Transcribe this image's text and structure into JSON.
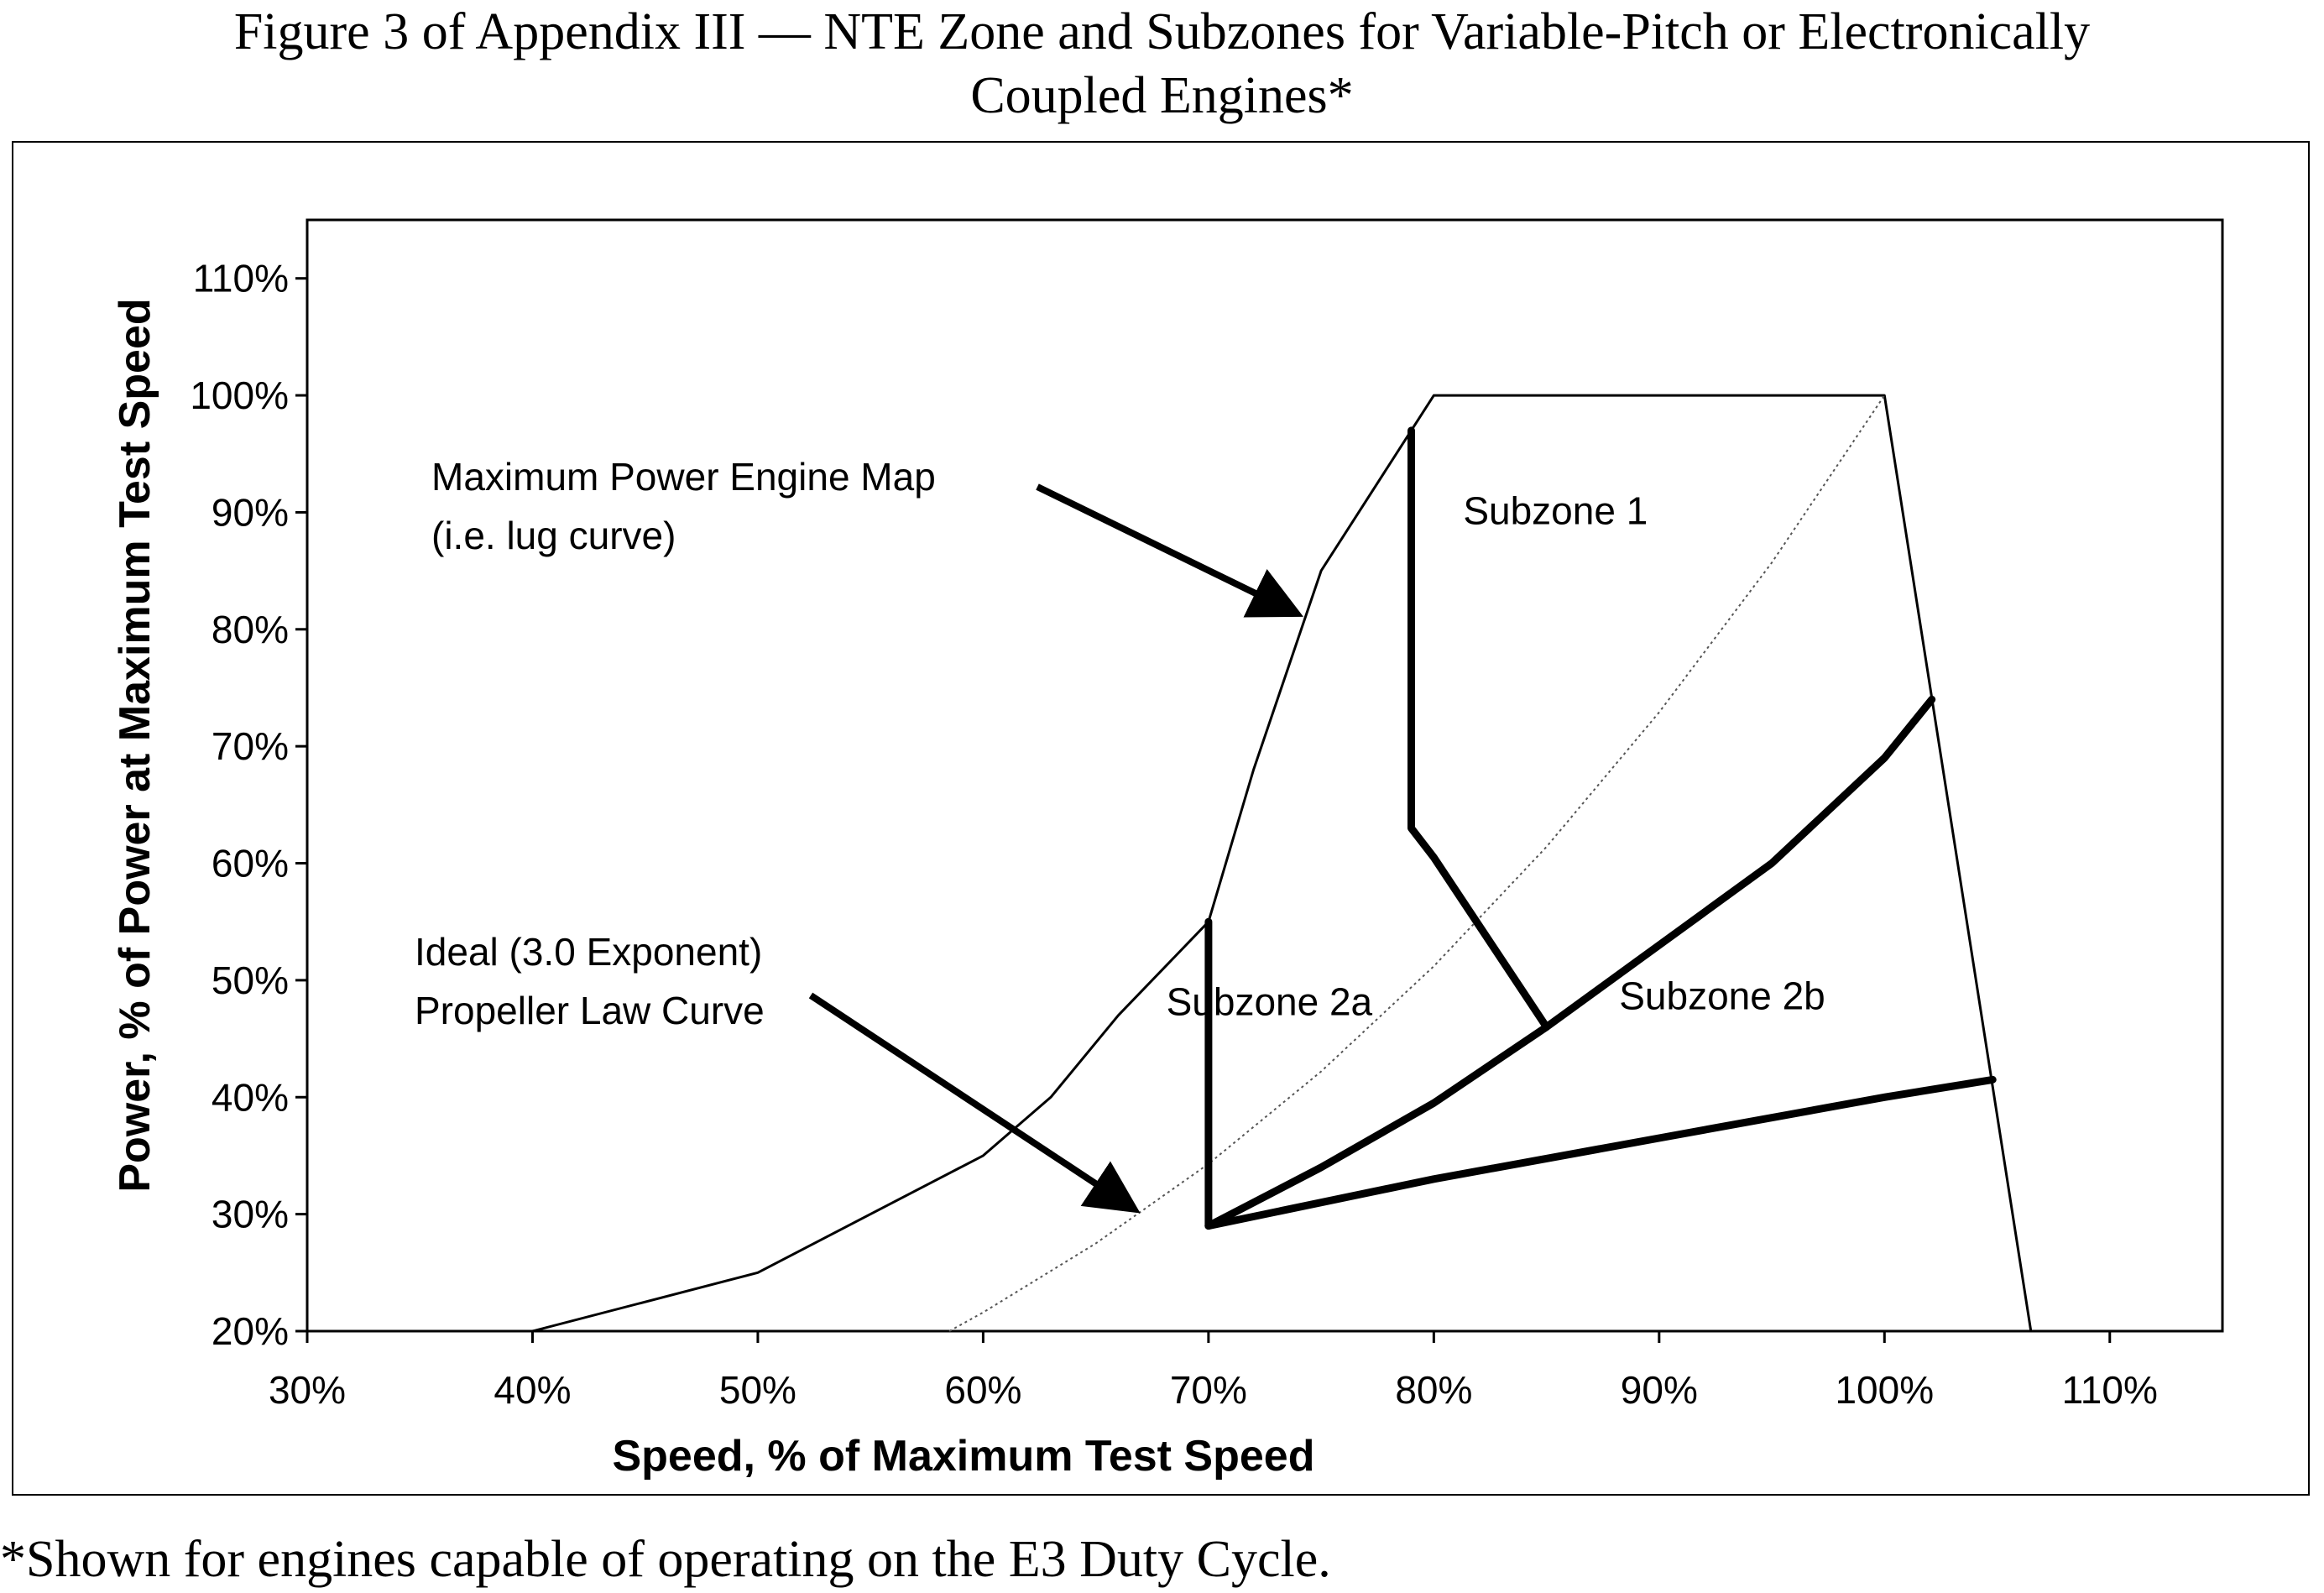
{
  "figure": {
    "title_line1": "Figure 3 of Appendix III — NTE Zone and Subzones for Variable-Pitch or Electronically",
    "title_line2": "Coupled Engines*",
    "footnote": "*Shown for engines capable of operating on the E3 Duty Cycle."
  },
  "chart_data": {
    "type": "line",
    "title": "Figure 3 of Appendix III — NTE Zone and Subzones for Variable-Pitch or Electronically Coupled Engines*",
    "xlabel": "Speed, % of Maximum Test Speed",
    "ylabel": "Power, % of Power at Maximum Test Speed",
    "xlim": [
      30,
      115
    ],
    "ylim": [
      20,
      115
    ],
    "xticks": [
      30,
      40,
      50,
      60,
      70,
      80,
      90,
      100,
      110
    ],
    "xtick_labels": [
      "30%",
      "40%",
      "50%",
      "60%",
      "70%",
      "80%",
      "90%",
      "100%",
      "110%"
    ],
    "yticks": [
      20,
      30,
      40,
      50,
      60,
      70,
      80,
      90,
      100,
      110
    ],
    "ytick_labels": [
      "20%",
      "30%",
      "40%",
      "50%",
      "60%",
      "70%",
      "80%",
      "90%",
      "100%",
      "110%"
    ],
    "grid": false,
    "series": [
      {
        "name": "Maximum Power Engine Map (i.e. lug curve)",
        "style": "thin",
        "x": [
          30,
          40,
          50,
          60,
          63,
          66,
          70,
          72,
          75,
          79,
          80,
          100,
          106.5
        ],
        "y": [
          20,
          20,
          25,
          35,
          40,
          47,
          55,
          68,
          85,
          97,
          100,
          100,
          20
        ]
      },
      {
        "name": "Ideal (3.0 Exponent) Propeller Law Curve",
        "style": "dotted",
        "x": [
          58.5,
          60,
          65,
          70,
          75,
          80,
          85,
          90,
          95,
          100
        ],
        "y": [
          20,
          21.6,
          27.5,
          34.3,
          42.2,
          51.2,
          61.4,
          72.9,
          85.7,
          100
        ]
      },
      {
        "name": "Subzone boundary (70% speed)",
        "style": "bold",
        "x": [
          70,
          70
        ],
        "y": [
          55,
          29
        ]
      },
      {
        "name": "Subzone boundary (lower)",
        "style": "bold",
        "x": [
          70,
          80,
          90,
          100,
          104.8
        ],
        "y": [
          29,
          33,
          36.5,
          40,
          41.5
        ]
      },
      {
        "name": "Subzone boundary (middle)",
        "style": "bold",
        "x": [
          70,
          75,
          80,
          85,
          90,
          95,
          100,
          102.1
        ],
        "y": [
          29,
          34,
          39.5,
          46,
          53,
          60,
          69,
          74
        ]
      },
      {
        "name": "Subzone 1 boundary",
        "style": "bold",
        "x": [
          79,
          79,
          80,
          85
        ],
        "y": [
          97,
          63,
          60.5,
          46
        ]
      }
    ],
    "annotations": [
      {
        "text_line1": "Maximum Power Engine Map",
        "text_line2": "(i.e. lug curve)",
        "arrow_to_x": 74.2,
        "arrow_to_y": 81
      },
      {
        "text_line1": "Ideal (3.0 Exponent)",
        "text_line2": "Propeller Law Curve",
        "arrow_to_x": 67,
        "arrow_to_y": 30
      },
      {
        "text": "Subzone 1",
        "x": 85.4,
        "y": 89
      },
      {
        "text": "Subzone 2a",
        "x": 72.7,
        "y": 47
      },
      {
        "text": "Subzone 2b",
        "x": 92.8,
        "y": 47.5
      }
    ]
  }
}
